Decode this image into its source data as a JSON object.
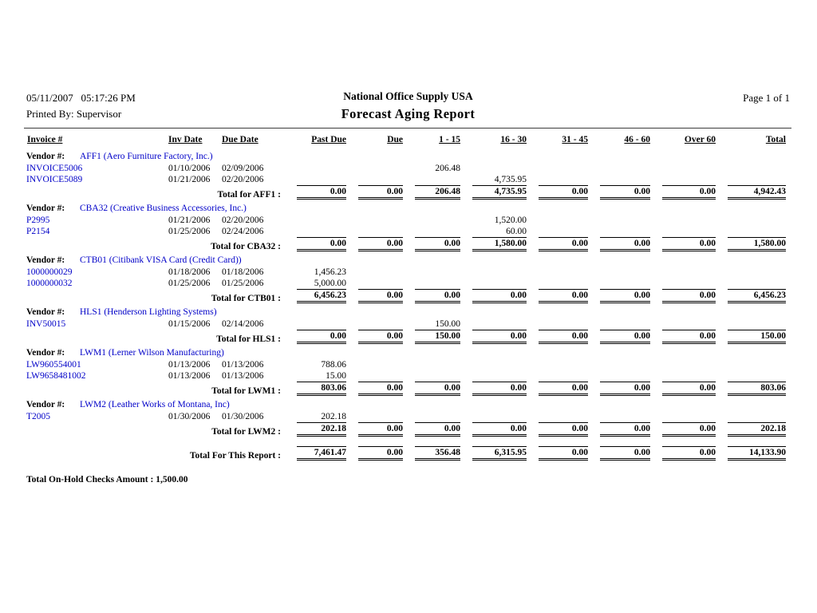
{
  "page_header": {
    "datetime": "05/11/2007   05:17:26 PM",
    "printed_by": "Printed By: Supervisor",
    "company": "National Office Supply USA",
    "title": "Forecast Aging Report",
    "page": "Page 1 of 1"
  },
  "labels": {
    "vendor": "Vendor #:"
  },
  "columns": [
    "Invoice #",
    "Inv Date",
    "Due Date",
    "Past Due",
    "Due",
    "1 - 15",
    "16 - 30",
    "31 - 45",
    "46 - 60",
    "Over 60",
    "Total"
  ],
  "groups": [
    {
      "vendor": "AFF1 (Aero Furniture Factory, Inc.)",
      "rows": [
        {
          "invoice": "INVOICE5006",
          "inv_date": "01/10/2006",
          "due_date": "02/09/2006",
          "amounts": [
            "",
            "",
            "206.48",
            "",
            "",
            "",
            "",
            ""
          ]
        },
        {
          "invoice": "INVOICE5089",
          "inv_date": "01/21/2006",
          "due_date": "02/20/2006",
          "amounts": [
            "",
            "",
            "",
            "4,735.95",
            "",
            "",
            "",
            ""
          ]
        }
      ],
      "total_label": "Total for AFF1 :",
      "totals": [
        "0.00",
        "0.00",
        "206.48",
        "4,735.95",
        "0.00",
        "0.00",
        "0.00",
        "4,942.43"
      ]
    },
    {
      "vendor": "CBA32 (Creative Business Accessories, Inc.)",
      "rows": [
        {
          "invoice": "P2995",
          "inv_date": "01/21/2006",
          "due_date": "02/20/2006",
          "amounts": [
            "",
            "",
            "",
            "1,520.00",
            "",
            "",
            "",
            ""
          ]
        },
        {
          "invoice": "P2154",
          "inv_date": "01/25/2006",
          "due_date": "02/24/2006",
          "amounts": [
            "",
            "",
            "",
            "60.00",
            "",
            "",
            "",
            ""
          ]
        }
      ],
      "total_label": "Total for CBA32 :",
      "totals": [
        "0.00",
        "0.00",
        "0.00",
        "1,580.00",
        "0.00",
        "0.00",
        "0.00",
        "1,580.00"
      ]
    },
    {
      "vendor": "CTB01 (Citibank VISA Card (Credit Card))",
      "rows": [
        {
          "invoice": "1000000029",
          "inv_date": "01/18/2006",
          "due_date": "01/18/2006",
          "amounts": [
            "1,456.23",
            "",
            "",
            "",
            "",
            "",
            "",
            ""
          ]
        },
        {
          "invoice": "1000000032",
          "inv_date": "01/25/2006",
          "due_date": "01/25/2006",
          "amounts": [
            "5,000.00",
            "",
            "",
            "",
            "",
            "",
            "",
            ""
          ]
        }
      ],
      "total_label": "Total for CTB01 :",
      "totals": [
        "6,456.23",
        "0.00",
        "0.00",
        "0.00",
        "0.00",
        "0.00",
        "0.00",
        "6,456.23"
      ]
    },
    {
      "vendor": "HLS1 (Henderson Lighting Systems)",
      "rows": [
        {
          "invoice": "INV50015",
          "inv_date": "01/15/2006",
          "due_date": "02/14/2006",
          "amounts": [
            "",
            "",
            "150.00",
            "",
            "",
            "",
            "",
            ""
          ]
        }
      ],
      "total_label": "Total for HLS1 :",
      "totals": [
        "0.00",
        "0.00",
        "150.00",
        "0.00",
        "0.00",
        "0.00",
        "0.00",
        "150.00"
      ]
    },
    {
      "vendor": "LWM1 (Lerner Wilson Manufacturing)",
      "rows": [
        {
          "invoice": "LW960554001",
          "inv_date": "01/13/2006",
          "due_date": "01/13/2006",
          "amounts": [
            "788.06",
            "",
            "",
            "",
            "",
            "",
            "",
            ""
          ]
        },
        {
          "invoice": "LW9658481002",
          "inv_date": "01/13/2006",
          "due_date": "01/13/2006",
          "amounts": [
            "15.00",
            "",
            "",
            "",
            "",
            "",
            "",
            ""
          ]
        }
      ],
      "total_label": "Total for LWM1 :",
      "totals": [
        "803.06",
        "0.00",
        "0.00",
        "0.00",
        "0.00",
        "0.00",
        "0.00",
        "803.06"
      ]
    },
    {
      "vendor": "LWM2 (Leather Works of Montana, Inc)",
      "rows": [
        {
          "invoice": "T2005",
          "inv_date": "01/30/2006",
          "due_date": "01/30/2006",
          "amounts": [
            "202.18",
            "",
            "",
            "",
            "",
            "",
            "",
            ""
          ]
        }
      ],
      "total_label": "Total for LWM2 :",
      "totals": [
        "202.18",
        "0.00",
        "0.00",
        "0.00",
        "0.00",
        "0.00",
        "0.00",
        "202.18"
      ]
    }
  ],
  "report_total": {
    "label": "Total For This Report :",
    "values": [
      "7,461.47",
      "0.00",
      "356.48",
      "6,315.95",
      "0.00",
      "0.00",
      "0.00",
      "14,133.90"
    ]
  },
  "footer_note": "Total On-Hold Checks Amount : 1,500.00",
  "colors": {
    "link_blue": "#0000C8",
    "text": "#000000",
    "background": "#ffffff"
  }
}
